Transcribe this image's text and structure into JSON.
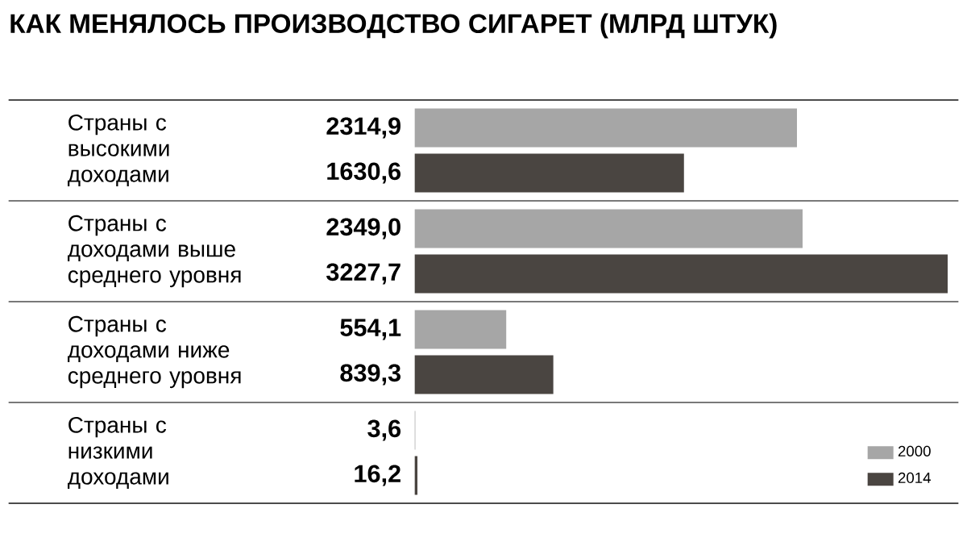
{
  "chart_data": {
    "type": "bar",
    "orientation": "horizontal",
    "title": "КАК МЕНЯЛОСЬ ПРОИЗВОДСТВО СИГАРЕТ (МЛРД ШТУК)",
    "categories": [
      "Страны с высокими доходами",
      "Страны с доходами выше среднего уровня",
      "Страны с доходами ниже среднего уровня",
      "Страны с низкими доходами"
    ],
    "series": [
      {
        "name": "2000",
        "color": "#a6a6a6",
        "values": [
          2314.9,
          2349.0,
          554.1,
          3.6
        ],
        "value_labels": [
          "2314,9",
          "2349,0",
          "554,1",
          "3,6"
        ]
      },
      {
        "name": "2014",
        "color": "#4a4541",
        "values": [
          1630.6,
          3227.7,
          839.3,
          16.2
        ],
        "value_labels": [
          "1630,6",
          "3227,7",
          "839,3",
          "16,2"
        ]
      }
    ],
    "legend": "bottom right"
  }
}
